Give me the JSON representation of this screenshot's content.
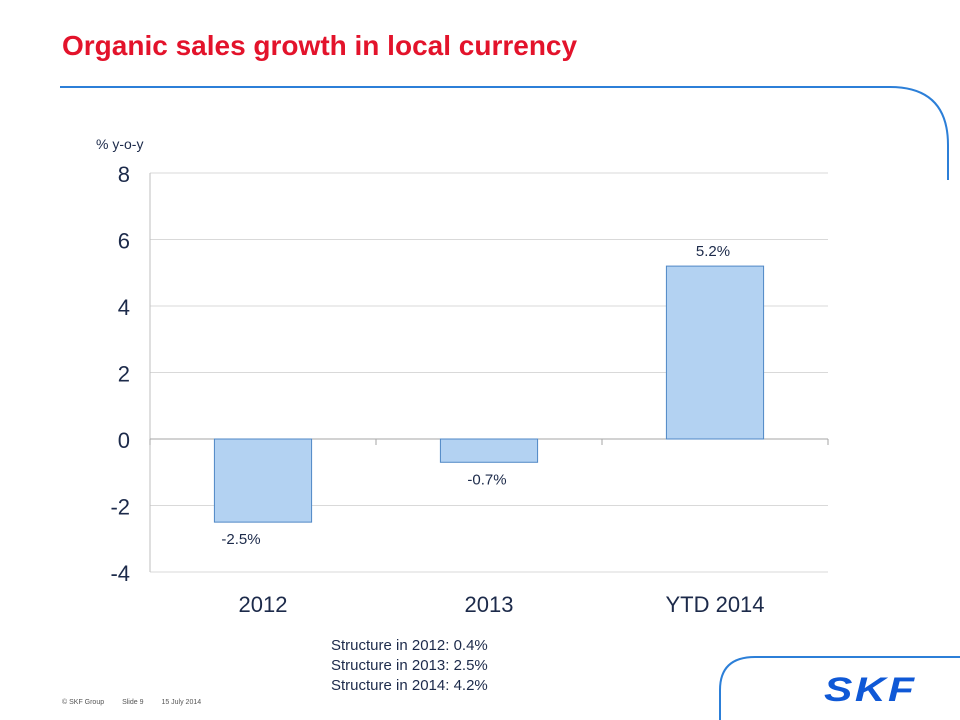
{
  "page": {
    "title": "Organic sales growth in local currency",
    "notes": [
      "Structure in 2012: 0.4%",
      "Structure in 2013: 2.5%",
      "Structure in 2014: 4.2%"
    ],
    "footer": {
      "copyright": "© SKF Group",
      "slide": "Slide 9",
      "date": "15 July 2014"
    },
    "logo_text": "SKF",
    "colors": {
      "title": "#e3132b",
      "bar_fill": "#b3d2f2",
      "bar_stroke": "#4f87c5",
      "logo": "#0f58d6",
      "decor_line": "#2c7fd8"
    }
  },
  "chart_data": {
    "type": "bar",
    "ylabel": "% y-o-y",
    "categories": [
      "2012",
      "2013",
      "YTD 2014"
    ],
    "values": [
      -2.5,
      -0.7,
      5.2
    ],
    "data_labels": [
      "-2.5%",
      "-0.7%",
      "5.2%"
    ],
    "ylim": [
      -4,
      8
    ],
    "yticks": [
      8,
      6,
      4,
      2,
      0,
      -2,
      -4
    ],
    "grid": true,
    "legend": "none"
  }
}
